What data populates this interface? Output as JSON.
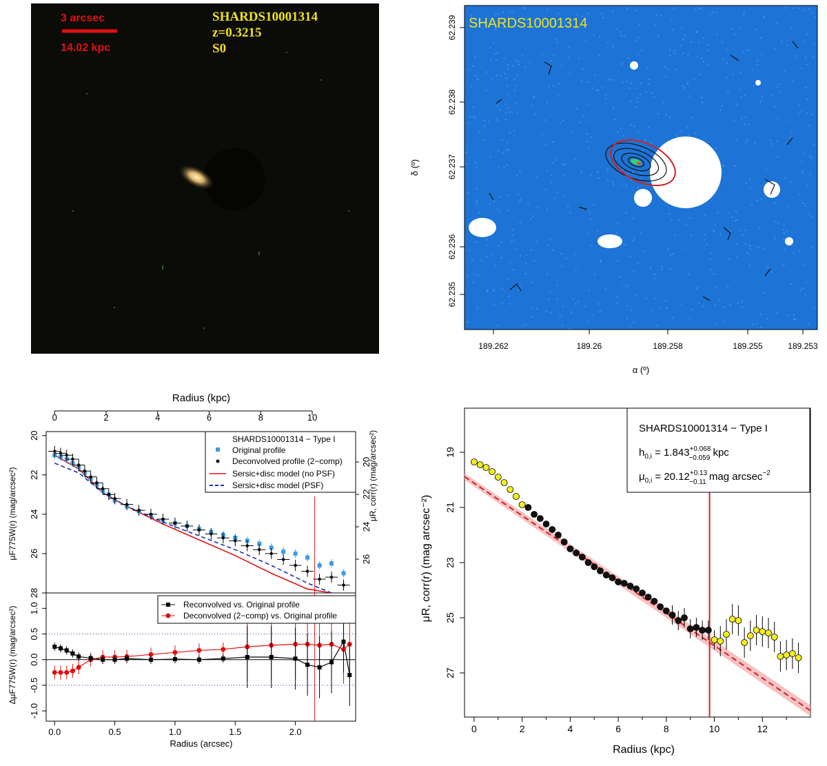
{
  "panels": {
    "rgb": {
      "scale_label": "3 arcsec",
      "kpc_label": "14.02 kpc",
      "object_id": "SHARDS10001314",
      "redshift": "z=0.3215",
      "morph": "S0",
      "colors": {
        "background": "#0b0b08",
        "scale": "#e01010",
        "label": "#f2e21a",
        "galaxy": "#d7b36a"
      }
    },
    "contour": {
      "object_id": "SHARDS10001314",
      "xlabel": "α (º)",
      "ylabel": "δ (º)",
      "xticks": [
        189.262,
        189.26,
        189.258,
        189.255,
        189.253
      ],
      "yticks": [
        62.235,
        62.236,
        62.237,
        62.238,
        62.239
      ],
      "colors": {
        "map": "#1d74d6",
        "ellipse": "#d42020",
        "mask": "#ffffff",
        "contour": "#111111"
      }
    },
    "profile": {
      "top_axis_label": "Radius (kpc)",
      "top_ticks": [
        0,
        2,
        4,
        6,
        8,
        10
      ],
      "ylabel_left": "μF775W(r) (mag/arcsec²)",
      "ylabel_right": "μR, corr(r) (mag/arcsec²)",
      "ylabel_resid": "ΔμF775W(r) (mag/arcsec²)",
      "xlabel": "Radius (arcsec)",
      "legend_title": "SHARDS10001314  − Type I",
      "legend": [
        "Original profile",
        "Deconvolved profile (2−comp)",
        "Sersic+disc model (no PSF)",
        "Sersic+disc model (PSF)"
      ],
      "resid_legend": [
        "Reconvolved vs. Original profile",
        "Deconvolved (2−comp) vs. Original profile"
      ],
      "colors": {
        "original": "#3a9be8",
        "deconvolved": "#000000",
        "model_nopsf": "#e01010",
        "model_psf": "#1a2fb0",
        "resid_deconv": "#e01010",
        "resid_reconv": "#000000",
        "limit": "#d42020"
      },
      "chart_data": {
        "type": "scatter",
        "x_arcsec_range": [
          -0.07,
          2.5
        ],
        "y_mag_range": [
          28,
          19.8
        ],
        "top_kpc_ticks": [
          0,
          2,
          4,
          6,
          8,
          10
        ],
        "yticks": [
          20,
          22,
          24,
          26,
          28
        ],
        "right_yticks": [
          20,
          22,
          24,
          26
        ],
        "resid_yticks": [
          -1.0,
          -0.5,
          0.0,
          0.5,
          1.0
        ],
        "resid_range": [
          -1.2,
          1.3
        ],
        "limit_arcsec": 2.16,
        "series": [
          {
            "name": "Original profile",
            "x": [
              0.0,
              0.05,
              0.1,
              0.15,
              0.2,
              0.25,
              0.3,
              0.35,
              0.4,
              0.45,
              0.5,
              0.6,
              0.7,
              0.8,
              0.9,
              1.0,
              1.1,
              1.2,
              1.3,
              1.4,
              1.5,
              1.6,
              1.7,
              1.8,
              1.9,
              2.0,
              2.1,
              2.2,
              2.3,
              2.4
            ],
            "y": [
              21.0,
              21.1,
              21.2,
              21.4,
              21.6,
              21.9,
              22.2,
              22.5,
              22.8,
              23.0,
              23.3,
              23.6,
              23.85,
              24.05,
              24.3,
              24.45,
              24.6,
              24.75,
              24.9,
              25.05,
              25.2,
              25.35,
              25.5,
              25.7,
              25.9,
              26.0,
              26.2,
              26.6,
              26.5,
              27.0
            ]
          },
          {
            "name": "Deconvolved profile (2-comp)",
            "x": [
              0.0,
              0.05,
              0.1,
              0.15,
              0.2,
              0.25,
              0.3,
              0.35,
              0.4,
              0.45,
              0.5,
              0.6,
              0.7,
              0.8,
              0.9,
              1.0,
              1.1,
              1.2,
              1.3,
              1.4,
              1.5,
              1.6,
              1.7,
              1.8,
              1.9,
              2.0,
              2.1,
              2.2,
              2.3,
              2.4
            ],
            "y": [
              20.8,
              20.9,
              21.0,
              21.2,
              21.5,
              21.8,
              22.1,
              22.4,
              22.7,
              23.0,
              23.2,
              23.5,
              23.8,
              24.0,
              24.25,
              24.45,
              24.6,
              24.8,
              25.0,
              25.2,
              25.35,
              25.6,
              25.8,
              26.0,
              26.3,
              26.6,
              26.9,
              27.3,
              27.2,
              27.6
            ]
          },
          {
            "name": "Sersic+disc model (no PSF)",
            "x": [
              0.0,
              0.2,
              0.4,
              0.6,
              0.9,
              1.2,
              1.5,
              1.8,
              2.1,
              2.3
            ],
            "y": [
              21.0,
              21.7,
              22.9,
              23.6,
              24.5,
              25.3,
              26.1,
              27.0,
              27.8,
              28.3
            ]
          },
          {
            "name": "Sersic+disc model (PSF)",
            "x": [
              0.0,
              0.2,
              0.4,
              0.6,
              0.9,
              1.2,
              1.5,
              1.8,
              2.1,
              2.3
            ],
            "y": [
              21.4,
              21.9,
              22.9,
              23.6,
              24.4,
              25.1,
              25.8,
              26.6,
              27.5,
              28.0
            ]
          },
          {
            "name": "Reconvolved vs. Original profile",
            "x": [
              0.0,
              0.05,
              0.1,
              0.15,
              0.2,
              0.3,
              0.4,
              0.5,
              0.6,
              0.8,
              1.0,
              1.2,
              1.4,
              1.6,
              1.8,
              2.0,
              2.1,
              2.2,
              2.3,
              2.4,
              2.45
            ],
            "y": [
              0.25,
              0.22,
              0.18,
              0.12,
              0.06,
              0.03,
              0.0,
              0.0,
              0.02,
              0.0,
              0.01,
              0.0,
              0.02,
              0.05,
              0.05,
              0.02,
              -0.1,
              -0.15,
              -0.05,
              0.35,
              -0.3
            ]
          },
          {
            "name": "Deconvolved (2-comp) vs. Original profile",
            "x": [
              0.0,
              0.05,
              0.1,
              0.15,
              0.2,
              0.3,
              0.4,
              0.5,
              0.6,
              0.8,
              1.0,
              1.2,
              1.4,
              1.6,
              1.8,
              2.0,
              2.1,
              2.2,
              2.3,
              2.4,
              2.45
            ],
            "y": [
              -0.25,
              -0.25,
              -0.25,
              -0.22,
              -0.15,
              0.0,
              0.05,
              0.05,
              0.06,
              0.1,
              0.14,
              0.18,
              0.2,
              0.25,
              0.28,
              0.3,
              0.3,
              0.28,
              0.3,
              0.2,
              0.3
            ]
          }
        ]
      }
    },
    "disc": {
      "legend_title": "SHARDS10001314  − Type I",
      "h_label": "h",
      "h_sub": "0,i",
      "h_value": " = 1.843",
      "h_err_up": "+0.068",
      "h_err_down": "−0.059",
      "h_unit": " kpc",
      "mu_label": "μ",
      "mu_sub": "0,i",
      "mu_value": " = 20.12",
      "mu_err_up": "+0.13",
      "mu_err_down": "−0.11",
      "mu_unit": " mag arcsec",
      "mu_unit_exp": "−2",
      "xlabel": "Radius (kpc)",
      "ylabel": "μR, corr(r) (mag arcsec⁻²)",
      "colors": {
        "fit_point": "#111111",
        "excluded_point": "#f2ee20",
        "fit_line": "#d42020",
        "band": "#f2a8a8",
        "limit": "#d42020"
      },
      "chart_data": {
        "type": "scatter",
        "xlim": [
          -0.4,
          14.0
        ],
        "ylim": [
          28.6,
          17.4
        ],
        "xticks": [
          0,
          2,
          4,
          6,
          8,
          10,
          12
        ],
        "yticks": [
          19,
          21,
          23,
          25,
          27
        ],
        "limit_kpc": 9.8,
        "fit": {
          "mu0": 20.12,
          "h": 1.843
        },
        "series": [
          {
            "name": "excluded (inner)",
            "x": [
              0.0,
              0.25,
              0.5,
              0.75,
              1.0,
              1.25,
              1.5,
              1.75,
              2.0
            ],
            "y": [
              19.35,
              19.45,
              19.55,
              19.7,
              19.9,
              20.1,
              20.35,
              20.6,
              20.9
            ]
          },
          {
            "name": "fitted",
            "x": [
              2.25,
              2.5,
              2.75,
              3.0,
              3.25,
              3.5,
              3.75,
              4.0,
              4.25,
              4.5,
              4.75,
              5.0,
              5.25,
              5.5,
              5.75,
              6.0,
              6.25,
              6.5,
              6.75,
              7.0,
              7.25,
              7.5,
              7.75,
              8.0,
              8.25,
              8.5,
              8.75,
              9.0,
              9.25,
              9.5,
              9.75
            ],
            "y": [
              21.0,
              21.25,
              21.4,
              21.6,
              21.8,
              22.0,
              22.25,
              22.5,
              22.65,
              22.8,
              23.0,
              23.15,
              23.3,
              23.45,
              23.55,
              23.7,
              23.75,
              23.85,
              23.95,
              24.1,
              24.25,
              24.4,
              24.6,
              24.75,
              24.9,
              25.1,
              25.0,
              25.4,
              25.35,
              25.45,
              25.45
            ]
          },
          {
            "name": "excluded (outer)",
            "x": [
              10.0,
              10.25,
              10.5,
              10.75,
              11.0,
              11.25,
              11.5,
              11.75,
              12.0,
              12.25,
              12.5,
              12.75,
              13.0,
              13.25,
              13.5
            ],
            "y": [
              25.8,
              25.85,
              25.6,
              25.05,
              25.1,
              25.9,
              25.65,
              25.45,
              25.5,
              25.55,
              25.7,
              26.4,
              26.35,
              26.3,
              26.45
            ]
          }
        ]
      }
    }
  }
}
